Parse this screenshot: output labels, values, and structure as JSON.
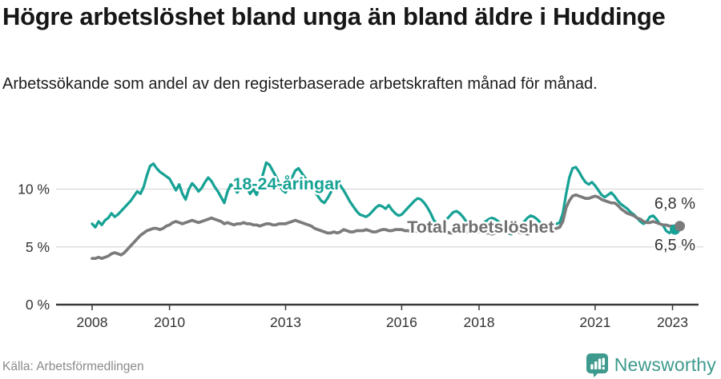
{
  "header": {
    "title": "Högre arbetslöshet bland unga än bland äldre i Huddinge",
    "subtitle": "Arbetssökande som andel av den registerbaserade arbetskraften månad för månad."
  },
  "footer": {
    "source": "Källa: Arbetsförmedlingen",
    "logo_text": "Newsworthy",
    "logo_color": "#3e9a8d",
    "logo_icon": "newsworthy-badge-bar-chart-icon"
  },
  "chart_data": {
    "type": "line",
    "unit": "percent",
    "frequency": "monthly",
    "start": "2008-01",
    "end": "2023-02",
    "grid": "horizontal-only",
    "ylim": [
      0,
      13.5
    ],
    "colors": {
      "youth_line": "#17a295",
      "total_line": "#7b7b7b",
      "total_label": "#6f6f6f",
      "gridline": "#d9d9d9",
      "axis": "#3a3a3a",
      "tick_text": "#333333",
      "end_label_text": "#333333"
    },
    "y_ticks": [
      {
        "value": 0,
        "label": "0 %"
      },
      {
        "value": 5,
        "label": "5 %"
      },
      {
        "value": 10,
        "label": "10 %"
      }
    ],
    "x_ticks": [
      {
        "year": 2008,
        "label": "2008"
      },
      {
        "year": 2010,
        "label": "2010"
      },
      {
        "year": 2013,
        "label": "2013"
      },
      {
        "year": 2016,
        "label": "2016"
      },
      {
        "year": 2018,
        "label": "2018"
      },
      {
        "year": 2021,
        "label": "2021"
      },
      {
        "year": 2023,
        "label": "2023"
      }
    ],
    "series": [
      {
        "name": "18-24-åringar",
        "label_text": "18-24-åringar",
        "end_label": "6,5 %",
        "color": "#17a295",
        "label_color": "#17a295",
        "values": [
          7.0,
          6.7,
          7.2,
          6.9,
          7.3,
          7.5,
          7.9,
          7.6,
          7.8,
          8.1,
          8.4,
          8.7,
          9.0,
          9.4,
          9.8,
          9.6,
          10.2,
          11.2,
          12.0,
          12.2,
          11.8,
          11.5,
          11.3,
          11.1,
          10.9,
          10.4,
          9.9,
          10.4,
          9.6,
          9.1,
          10.0,
          10.5,
          10.2,
          9.8,
          10.1,
          10.6,
          11.0,
          10.7,
          10.2,
          9.8,
          9.3,
          8.8,
          9.8,
          10.4,
          10.1,
          9.7,
          10.0,
          10.3,
          10.1,
          9.6,
          10.0,
          9.5,
          10.3,
          11.3,
          12.3,
          12.1,
          11.6,
          11.1,
          10.5,
          9.9,
          9.7,
          10.3,
          11.0,
          11.6,
          11.8,
          11.4,
          11.0,
          10.6,
          10.2,
          9.8,
          9.4,
          9.0,
          8.8,
          9.2,
          9.7,
          10.2,
          10.5,
          10.3,
          9.9,
          9.4,
          8.9,
          8.5,
          8.1,
          7.8,
          7.7,
          7.6,
          7.8,
          8.1,
          8.4,
          8.6,
          8.5,
          8.3,
          8.6,
          8.2,
          7.9,
          7.7,
          7.8,
          8.1,
          8.4,
          8.7,
          9.0,
          9.2,
          9.1,
          8.8,
          8.4,
          7.9,
          7.3,
          7.0,
          6.9,
          7.1,
          7.4,
          7.7,
          8.0,
          8.1,
          7.9,
          7.6,
          7.2,
          6.8,
          6.6,
          6.5,
          6.7,
          7.0,
          7.2,
          7.4,
          7.5,
          7.4,
          7.2,
          6.9,
          6.5,
          6.2,
          6.1,
          6.3,
          6.6,
          6.9,
          7.2,
          7.5,
          7.7,
          7.6,
          7.4,
          7.1,
          6.9,
          6.7,
          6.8,
          6.9,
          7.0,
          7.1,
          7.9,
          9.6,
          11.0,
          11.8,
          11.9,
          11.5,
          11.0,
          10.6,
          10.4,
          10.6,
          10.3,
          9.9,
          9.5,
          9.3,
          9.5,
          9.7,
          9.4,
          9.0,
          8.7,
          8.5,
          8.3,
          8.0,
          7.8,
          7.5,
          7.2,
          7.0,
          7.2,
          7.6,
          7.7,
          7.4,
          7.0,
          6.9,
          6.4,
          6.2,
          6.4,
          6.5
        ]
      },
      {
        "name": "Total arbetslöshet",
        "label_text": "Total arbetslöshet",
        "end_label": "6,8 %",
        "color": "#7b7b7b",
        "label_color": "#6f6f6f",
        "values": [
          4.0,
          4.0,
          4.1,
          4.0,
          4.1,
          4.2,
          4.4,
          4.5,
          4.4,
          4.3,
          4.5,
          4.8,
          5.1,
          5.4,
          5.7,
          6.0,
          6.2,
          6.4,
          6.5,
          6.6,
          6.6,
          6.5,
          6.6,
          6.8,
          6.9,
          7.1,
          7.2,
          7.1,
          7.0,
          7.1,
          7.2,
          7.3,
          7.2,
          7.1,
          7.2,
          7.3,
          7.4,
          7.5,
          7.4,
          7.3,
          7.2,
          7.0,
          7.1,
          7.0,
          6.9,
          7.0,
          7.0,
          7.1,
          7.0,
          7.0,
          6.9,
          6.9,
          6.8,
          6.9,
          7.0,
          7.0,
          6.9,
          6.9,
          7.0,
          7.0,
          7.0,
          7.1,
          7.2,
          7.3,
          7.2,
          7.1,
          7.0,
          6.9,
          6.8,
          6.6,
          6.5,
          6.4,
          6.3,
          6.2,
          6.2,
          6.3,
          6.2,
          6.3,
          6.5,
          6.4,
          6.3,
          6.3,
          6.4,
          6.4,
          6.4,
          6.5,
          6.4,
          6.3,
          6.3,
          6.4,
          6.5,
          6.5,
          6.4,
          6.4,
          6.5,
          6.5,
          6.5,
          6.4,
          6.4,
          6.3,
          6.3,
          6.4,
          6.5,
          6.4,
          6.4,
          6.3,
          6.3,
          6.4,
          6.4,
          6.3,
          6.3,
          6.2,
          6.2,
          6.3,
          6.4,
          6.4,
          6.3,
          6.2,
          6.3,
          6.3,
          6.3,
          6.3,
          6.2,
          6.2,
          6.1,
          6.2,
          6.3,
          6.3,
          6.2,
          6.2,
          6.2,
          6.3,
          6.3,
          6.2,
          6.2,
          6.1,
          6.2,
          6.3,
          6.4,
          6.3,
          6.3,
          6.4,
          6.4,
          6.5,
          6.6,
          6.7,
          7.2,
          8.4,
          9.0,
          9.4,
          9.5,
          9.4,
          9.3,
          9.2,
          9.2,
          9.3,
          9.4,
          9.3,
          9.1,
          9.0,
          8.9,
          8.8,
          8.8,
          8.6,
          8.3,
          8.1,
          7.9,
          7.8,
          7.7,
          7.5,
          7.4,
          7.2,
          7.1,
          7.1,
          7.2,
          7.1,
          7.0,
          6.9,
          6.9,
          6.8,
          6.8,
          6.8
        ]
      }
    ]
  }
}
